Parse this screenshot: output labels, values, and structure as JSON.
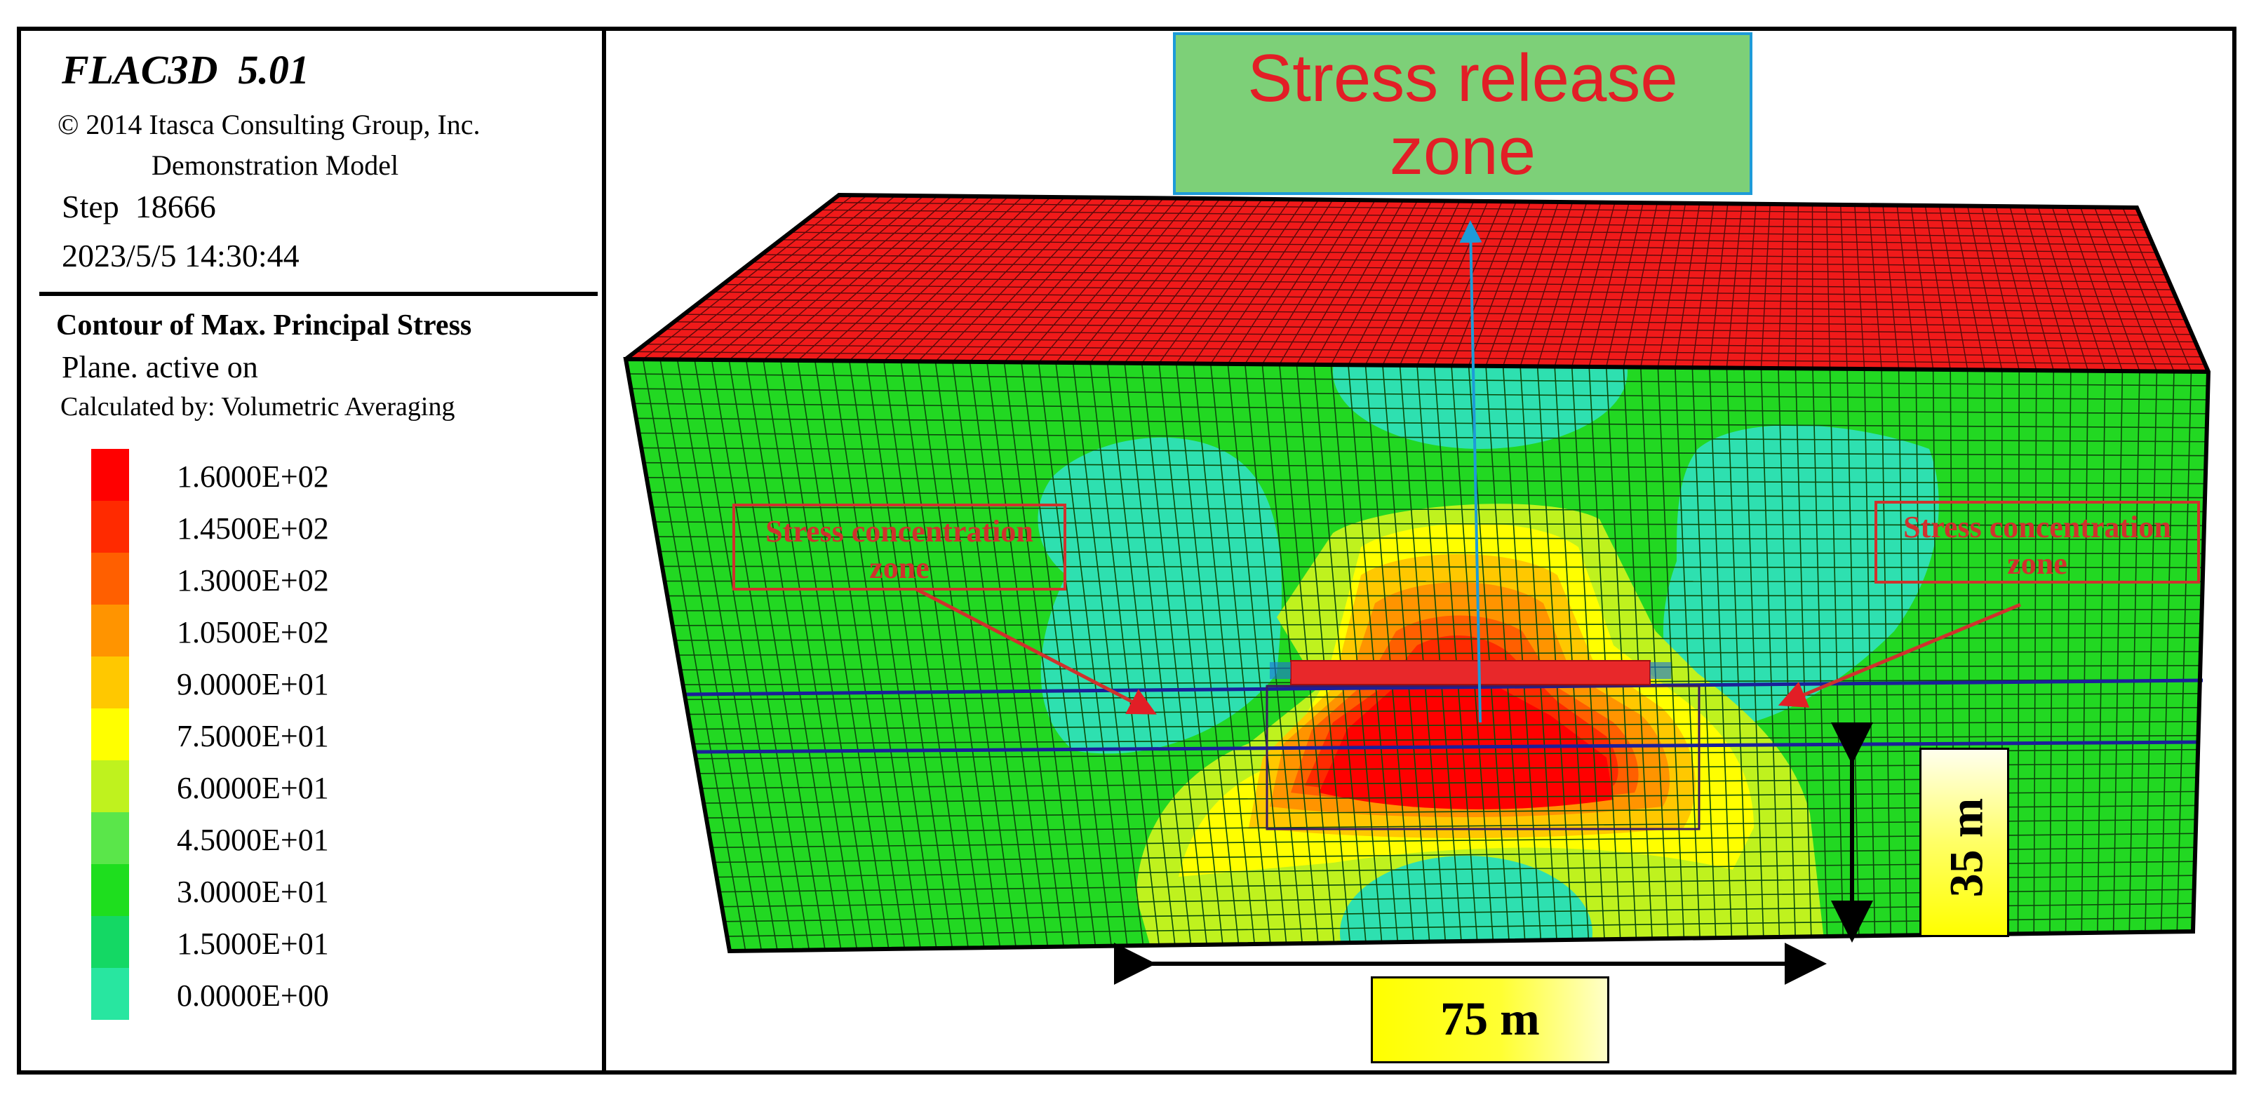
{
  "header": {
    "title": "FLAC3D  5.01",
    "copyright": "© 2014 Itasca Consulting Group, Inc.",
    "model": "Demonstration Model",
    "step": "Step  18666",
    "datetime": "2023/5/5 14:30:44"
  },
  "contour": {
    "title": "Contour of Max. Principal Stress",
    "plane": "Plane. active on",
    "calculated": "Calculated by: Volumetric Averaging",
    "scale": [
      {
        "label": "1.6000E+02",
        "color": "#ff0000"
      },
      {
        "label": "1.4500E+02",
        "color": "#ff2a00"
      },
      {
        "label": "1.3000E+02",
        "color": "#ff5f00"
      },
      {
        "label": "1.0500E+02",
        "color": "#ff9400"
      },
      {
        "label": "9.0000E+01",
        "color": "#ffc800"
      },
      {
        "label": "7.5000E+01",
        "color": "#ffff00"
      },
      {
        "label": "6.0000E+01",
        "color": "#bff21e"
      },
      {
        "label": "4.5000E+01",
        "color": "#5ae64a"
      },
      {
        "label": "3.0000E+01",
        "color": "#1ede1e"
      },
      {
        "label": "1.5000E+01",
        "color": "#14d864"
      },
      {
        "label": "0.0000E+00",
        "color": "#28e6a0"
      }
    ]
  },
  "annotations": {
    "release_zone": "Stress release zone",
    "concentration_left": "Stress concentration zone",
    "concentration_right": "Stress concentration zone",
    "width_label": "75 m",
    "height_label": "35 m"
  },
  "colors": {
    "top_face": "#f01a1a",
    "green_face": "#22d822",
    "cyan_zone": "#2ee0b0",
    "callout_red": "#e21e26",
    "release_box_fill": "#7dd078",
    "release_box_border": "#1d9bd8"
  }
}
